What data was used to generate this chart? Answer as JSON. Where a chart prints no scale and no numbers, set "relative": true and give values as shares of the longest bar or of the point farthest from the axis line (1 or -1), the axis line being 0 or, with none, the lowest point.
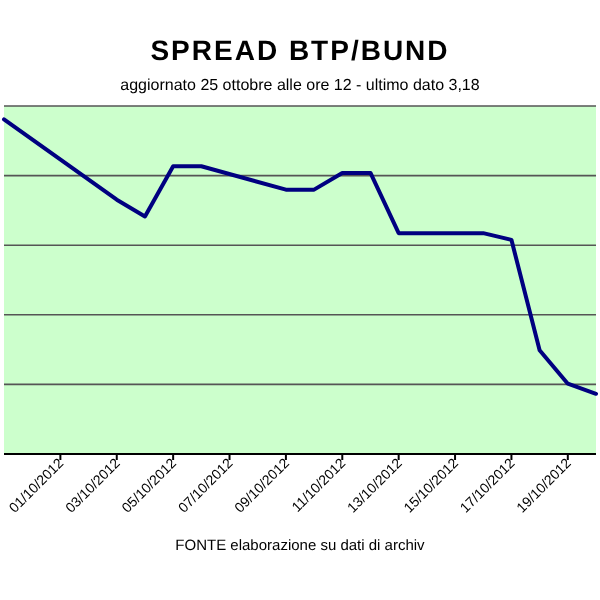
{
  "chart_data": {
    "type": "line",
    "title": "SPREAD  BTP/BUND",
    "subtitle": "aggiornato 25 ottobre alle ore 12 - ultimo dato 3,18",
    "annotations": [
      "FONTE elaborazione su dati di archiv"
    ],
    "relative": true,
    "grid": "y",
    "marker": "none",
    "line_style": "solid",
    "x": [
      "2012-09-29",
      "2012-10-03",
      "2012-10-04",
      "2012-10-05",
      "2012-10-06",
      "2012-10-09",
      "2012-10-10",
      "2012-10-11",
      "2012-10-12",
      "2012-10-13",
      "2012-10-16",
      "2012-10-17",
      "2012-10-18",
      "2012-10-19",
      "2012-10-20"
    ],
    "xlim": [
      "2012-09-29",
      "2012-10-20"
    ],
    "xticks": [
      {
        "value": "2012-10-01",
        "label": "01/10/2012"
      },
      {
        "value": "2012-10-03",
        "label": "03/10/2012"
      },
      {
        "value": "2012-10-05",
        "label": "05/10/2012"
      },
      {
        "value": "2012-10-07",
        "label": "07/10/2012"
      },
      {
        "value": "2012-10-09",
        "label": "09/10/2012"
      },
      {
        "value": "2012-10-11",
        "label": "11/10/2012"
      },
      {
        "value": "2012-10-13",
        "label": "13/10/2012"
      },
      {
        "value": "2012-10-15",
        "label": "15/10/2012"
      },
      {
        "value": "2012-10-17",
        "label": "17/10/2012"
      },
      {
        "value": "2012-10-19",
        "label": "19/10/2012"
      }
    ],
    "series": [
      {
        "color": "#000080",
        "values": [
          1.0,
          0.76,
          0.71,
          0.86,
          0.86,
          0.79,
          0.79,
          0.84,
          0.84,
          0.66,
          0.66,
          0.64,
          0.31,
          0.21,
          0.18
        ]
      }
    ]
  }
}
